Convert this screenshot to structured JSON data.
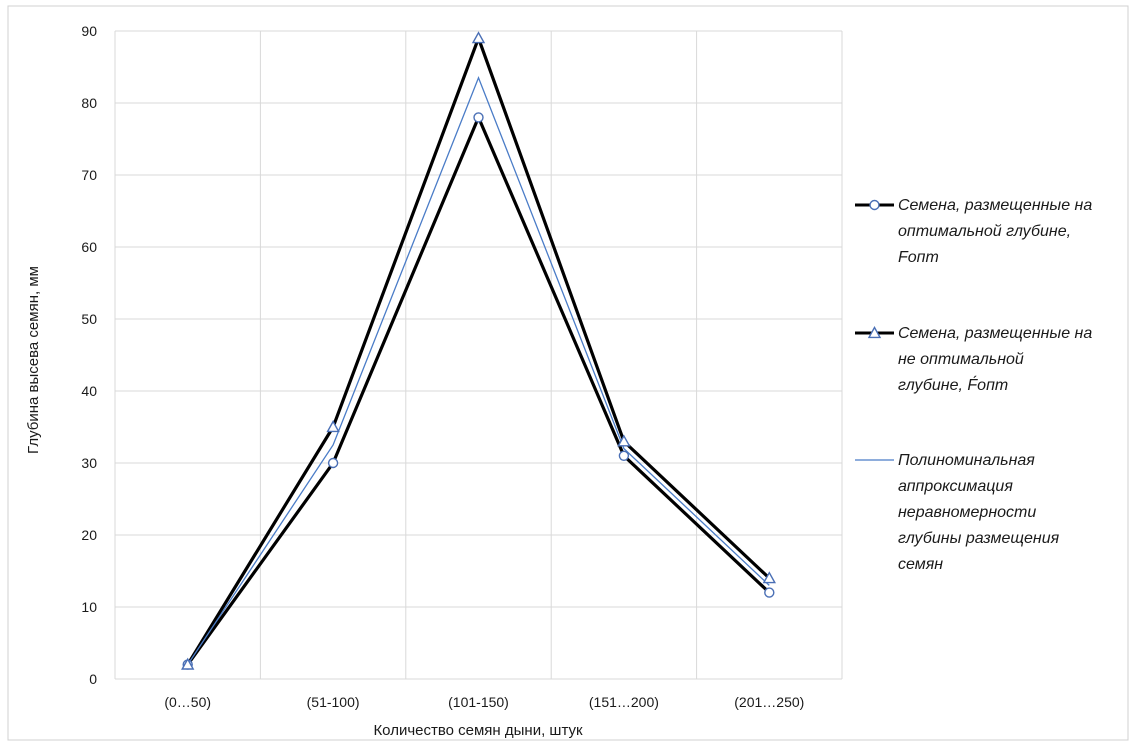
{
  "chart_data": {
    "type": "line",
    "title": "",
    "xlabel": "Количество семян дыни, штук",
    "ylabel": "Глубина высева семян, мм",
    "categories": [
      "(0…50)",
      "(51-100)",
      "(101-150)",
      "(151…200)",
      "(201…250)"
    ],
    "ylim": [
      0,
      90
    ],
    "yticks": [
      0,
      10,
      20,
      30,
      40,
      50,
      60,
      70,
      80,
      90
    ],
    "grid": true,
    "legend_position": "right",
    "series": [
      {
        "name": "Семена, размещенные на оптимальной глубине, Fопт",
        "legend_lines": [
          "Семена, размещенные на",
          "оптимальной  глубине,",
          "Fопт"
        ],
        "values": [
          2,
          30,
          78,
          31,
          12
        ],
        "color": "#000000",
        "marker_color": "#4a6fb5",
        "marker": "circle"
      },
      {
        "name": "Семена, размещенные на не оптимальной глубине, F́опт",
        "legend_lines": [
          "Семена, размещенные на",
          "не оптимальной",
          "глубине, F́опт"
        ],
        "values": [
          2,
          35,
          89,
          33,
          14
        ],
        "color": "#000000",
        "marker_color": "#4a6fb5",
        "marker": "triangle"
      },
      {
        "name": "Полиноминальная аппроксимация неравномерности глубины размещения семян",
        "legend_lines": [
          "Полиноминальная",
          "аппроксимация",
          "неравномерности",
          "глубины размещения",
          "семян"
        ],
        "values": [
          2,
          32.5,
          83.5,
          32,
          13
        ],
        "color": "#4a7cc7",
        "marker": "none"
      }
    ]
  }
}
